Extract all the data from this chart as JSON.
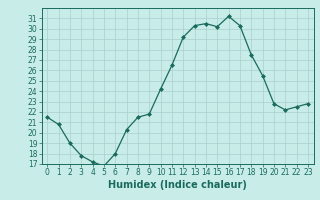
{
  "x": [
    0,
    1,
    2,
    3,
    4,
    5,
    6,
    7,
    8,
    9,
    10,
    11,
    12,
    13,
    14,
    15,
    16,
    17,
    18,
    19,
    20,
    21,
    22,
    23
  ],
  "y": [
    21.5,
    20.8,
    19.0,
    17.8,
    17.2,
    16.8,
    18.0,
    20.3,
    21.5,
    21.8,
    24.2,
    26.5,
    29.2,
    30.3,
    30.5,
    30.2,
    31.2,
    30.3,
    27.5,
    25.5,
    22.8,
    22.2,
    22.5,
    22.8
  ],
  "line_color": "#1a6b5e",
  "marker_color": "#1a6b5e",
  "bg_color": "#c8ece8",
  "grid_color": "#aacfcc",
  "xlabel": "Humidex (Indice chaleur)",
  "xlim": [
    -0.5,
    23.5
  ],
  "ylim": [
    17,
    32
  ],
  "yticks": [
    17,
    18,
    19,
    20,
    21,
    22,
    23,
    24,
    25,
    26,
    27,
    28,
    29,
    30,
    31
  ],
  "xticks": [
    0,
    1,
    2,
    3,
    4,
    5,
    6,
    7,
    8,
    9,
    10,
    11,
    12,
    13,
    14,
    15,
    16,
    17,
    18,
    19,
    20,
    21,
    22,
    23
  ],
  "tick_fontsize": 5.5,
  "label_fontsize": 7
}
